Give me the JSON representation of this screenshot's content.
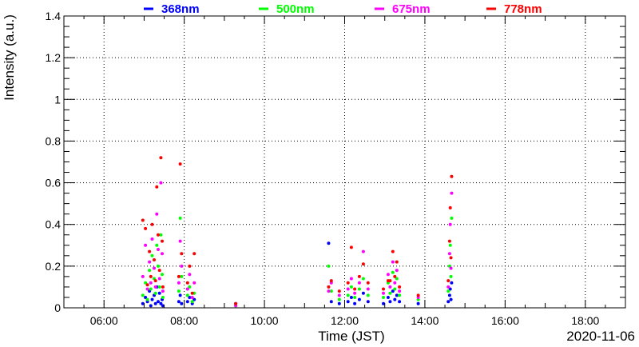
{
  "chart_data": {
    "type": "scatter",
    "title": "",
    "xlabel": "Time (JST)",
    "ylabel": "Intensity (a.u.)",
    "date_label": "2020-11-06",
    "xlim": [
      "05:00",
      "19:00"
    ],
    "ylim": [
      0,
      1.4
    ],
    "x_ticks": [
      "06:00",
      "08:00",
      "10:00",
      "12:00",
      "14:00",
      "16:00",
      "18:00"
    ],
    "y_ticks": [
      "0",
      "0.2",
      "0.4",
      "0.6",
      "0.8",
      "1",
      "1.2",
      "1.4"
    ],
    "grid": true,
    "legend_position": "top",
    "series": [
      {
        "name": "368nm",
        "color": "#0000ff",
        "points": [
          [
            "06:58",
            0.02
          ],
          [
            "07:02",
            0.05
          ],
          [
            "07:05",
            0.03
          ],
          [
            "07:08",
            0.08
          ],
          [
            "07:10",
            0.01
          ],
          [
            "07:12",
            0.04
          ],
          [
            "07:15",
            0.06
          ],
          [
            "07:17",
            0.02
          ],
          [
            "07:19",
            0.1
          ],
          [
            "07:21",
            0.03
          ],
          [
            "07:23",
            0.07
          ],
          [
            "07:25",
            0.02
          ],
          [
            "07:27",
            0.04
          ],
          [
            "07:28",
            0.01
          ],
          [
            "07:52",
            0.03
          ],
          [
            "07:54",
            0.06
          ],
          [
            "07:56",
            0.02
          ],
          [
            "08:05",
            0.03
          ],
          [
            "08:08",
            0.05
          ],
          [
            "08:12",
            0.02
          ],
          [
            "08:15",
            0.04
          ],
          [
            "09:17",
            0.02
          ],
          [
            "11:36",
            0.31
          ],
          [
            "11:40",
            0.03
          ],
          [
            "11:52",
            0.02
          ],
          [
            "12:05",
            0.03
          ],
          [
            "12:10",
            0.05
          ],
          [
            "12:15",
            0.02
          ],
          [
            "12:22",
            0.04
          ],
          [
            "12:28",
            0.07
          ],
          [
            "12:35",
            0.03
          ],
          [
            "12:58",
            0.02
          ],
          [
            "13:05",
            0.05
          ],
          [
            "13:08",
            0.03
          ],
          [
            "13:12",
            0.08
          ],
          [
            "13:15",
            0.04
          ],
          [
            "13:18",
            0.06
          ],
          [
            "13:22",
            0.03
          ],
          [
            "13:50",
            0.02
          ],
          [
            "14:35",
            0.03
          ],
          [
            "14:37",
            0.06
          ],
          [
            "14:38",
            0.09
          ],
          [
            "14:39",
            0.04
          ],
          [
            "14:40",
            0.12
          ]
        ]
      },
      {
        "name": "500nm",
        "color": "#00ff00",
        "points": [
          [
            "06:58",
            0.06
          ],
          [
            "07:02",
            0.12
          ],
          [
            "07:05",
            0.04
          ],
          [
            "07:08",
            0.18
          ],
          [
            "07:10",
            0.09
          ],
          [
            "07:12",
            0.25
          ],
          [
            "07:15",
            0.14
          ],
          [
            "07:17",
            0.07
          ],
          [
            "07:19",
            0.3
          ],
          [
            "07:21",
            0.2
          ],
          [
            "07:23",
            0.1
          ],
          [
            "07:25",
            0.35
          ],
          [
            "07:27",
            0.16
          ],
          [
            "07:28",
            0.05
          ],
          [
            "07:52",
            0.08
          ],
          [
            "07:54",
            0.43
          ],
          [
            "07:56",
            0.15
          ],
          [
            "08:05",
            0.06
          ],
          [
            "08:08",
            0.1
          ],
          [
            "08:12",
            0.03
          ],
          [
            "08:15",
            0.07
          ],
          [
            "09:17",
            0.01
          ],
          [
            "11:36",
            0.2
          ],
          [
            "11:40",
            0.08
          ],
          [
            "11:52",
            0.04
          ],
          [
            "12:05",
            0.06
          ],
          [
            "12:10",
            0.1
          ],
          [
            "12:15",
            0.05
          ],
          [
            "12:22",
            0.09
          ],
          [
            "12:28",
            0.14
          ],
          [
            "12:35",
            0.06
          ],
          [
            "12:58",
            0.05
          ],
          [
            "13:05",
            0.12
          ],
          [
            "13:08",
            0.07
          ],
          [
            "13:12",
            0.17
          ],
          [
            "13:15",
            0.09
          ],
          [
            "13:18",
            0.14
          ],
          [
            "13:22",
            0.06
          ],
          [
            "13:50",
            0.04
          ],
          [
            "14:35",
            0.08
          ],
          [
            "14:37",
            0.2
          ],
          [
            "14:38",
            0.3
          ],
          [
            "14:39",
            0.15
          ],
          [
            "14:40",
            0.43
          ]
        ]
      },
      {
        "name": "675nm",
        "color": "#ff00ff",
        "points": [
          [
            "06:58",
            0.15
          ],
          [
            "07:02",
            0.3
          ],
          [
            "07:05",
            0.09
          ],
          [
            "07:08",
            0.22
          ],
          [
            "07:10",
            0.12
          ],
          [
            "07:12",
            0.33
          ],
          [
            "07:15",
            0.19
          ],
          [
            "07:17",
            0.1
          ],
          [
            "07:19",
            0.45
          ],
          [
            "07:21",
            0.28
          ],
          [
            "07:23",
            0.14
          ],
          [
            "07:25",
            0.6
          ],
          [
            "07:27",
            0.26
          ],
          [
            "07:28",
            0.08
          ],
          [
            "07:52",
            0.12
          ],
          [
            "07:54",
            0.32
          ],
          [
            "07:56",
            0.2
          ],
          [
            "08:05",
            0.09
          ],
          [
            "08:08",
            0.16
          ],
          [
            "08:12",
            0.05
          ],
          [
            "08:15",
            0.12
          ],
          [
            "09:17",
            0.01
          ],
          [
            "11:36",
            0.08
          ],
          [
            "11:40",
            0.12
          ],
          [
            "11:52",
            0.06
          ],
          [
            "12:05",
            0.09
          ],
          [
            "12:10",
            0.14
          ],
          [
            "12:15",
            0.07
          ],
          [
            "12:22",
            0.12
          ],
          [
            "12:28",
            0.27
          ],
          [
            "12:35",
            0.09
          ],
          [
            "12:58",
            0.07
          ],
          [
            "13:05",
            0.16
          ],
          [
            "13:08",
            0.1
          ],
          [
            "13:12",
            0.22
          ],
          [
            "13:15",
            0.12
          ],
          [
            "13:18",
            0.18
          ],
          [
            "13:22",
            0.08
          ],
          [
            "13:50",
            0.05
          ],
          [
            "14:35",
            0.1
          ],
          [
            "14:37",
            0.26
          ],
          [
            "14:38",
            0.4
          ],
          [
            "14:39",
            0.19
          ],
          [
            "14:40",
            0.55
          ]
        ]
      },
      {
        "name": "778nm",
        "color": "#ff0000",
        "points": [
          [
            "06:58",
            0.42
          ],
          [
            "07:02",
            0.38
          ],
          [
            "07:05",
            0.11
          ],
          [
            "07:08",
            0.27
          ],
          [
            "07:10",
            0.15
          ],
          [
            "07:12",
            0.4
          ],
          [
            "07:15",
            0.23
          ],
          [
            "07:17",
            0.13
          ],
          [
            "07:19",
            0.58
          ],
          [
            "07:21",
            0.35
          ],
          [
            "07:23",
            0.18
          ],
          [
            "07:25",
            0.72
          ],
          [
            "07:27",
            0.32
          ],
          [
            "07:28",
            0.1
          ],
          [
            "07:52",
            0.15
          ],
          [
            "07:54",
            0.69
          ],
          [
            "07:56",
            0.26
          ],
          [
            "08:05",
            0.12
          ],
          [
            "08:08",
            0.2
          ],
          [
            "08:12",
            0.07
          ],
          [
            "08:15",
            0.26
          ],
          [
            "09:17",
            0.02
          ],
          [
            "11:36",
            0.1
          ],
          [
            "11:40",
            0.13
          ],
          [
            "11:52",
            0.08
          ],
          [
            "12:05",
            0.12
          ],
          [
            "12:10",
            0.29
          ],
          [
            "12:15",
            0.09
          ],
          [
            "12:22",
            0.15
          ],
          [
            "12:28",
            0.21
          ],
          [
            "12:35",
            0.12
          ],
          [
            "12:58",
            0.09
          ],
          [
            "13:05",
            0.13
          ],
          [
            "13:08",
            0.13
          ],
          [
            "13:12",
            0.27
          ],
          [
            "13:15",
            0.15
          ],
          [
            "13:18",
            0.22
          ],
          [
            "13:22",
            0.1
          ],
          [
            "13:50",
            0.06
          ],
          [
            "14:35",
            0.13
          ],
          [
            "14:37",
            0.32
          ],
          [
            "14:38",
            0.48
          ],
          [
            "14:39",
            0.24
          ],
          [
            "14:40",
            0.63
          ]
        ]
      }
    ]
  }
}
